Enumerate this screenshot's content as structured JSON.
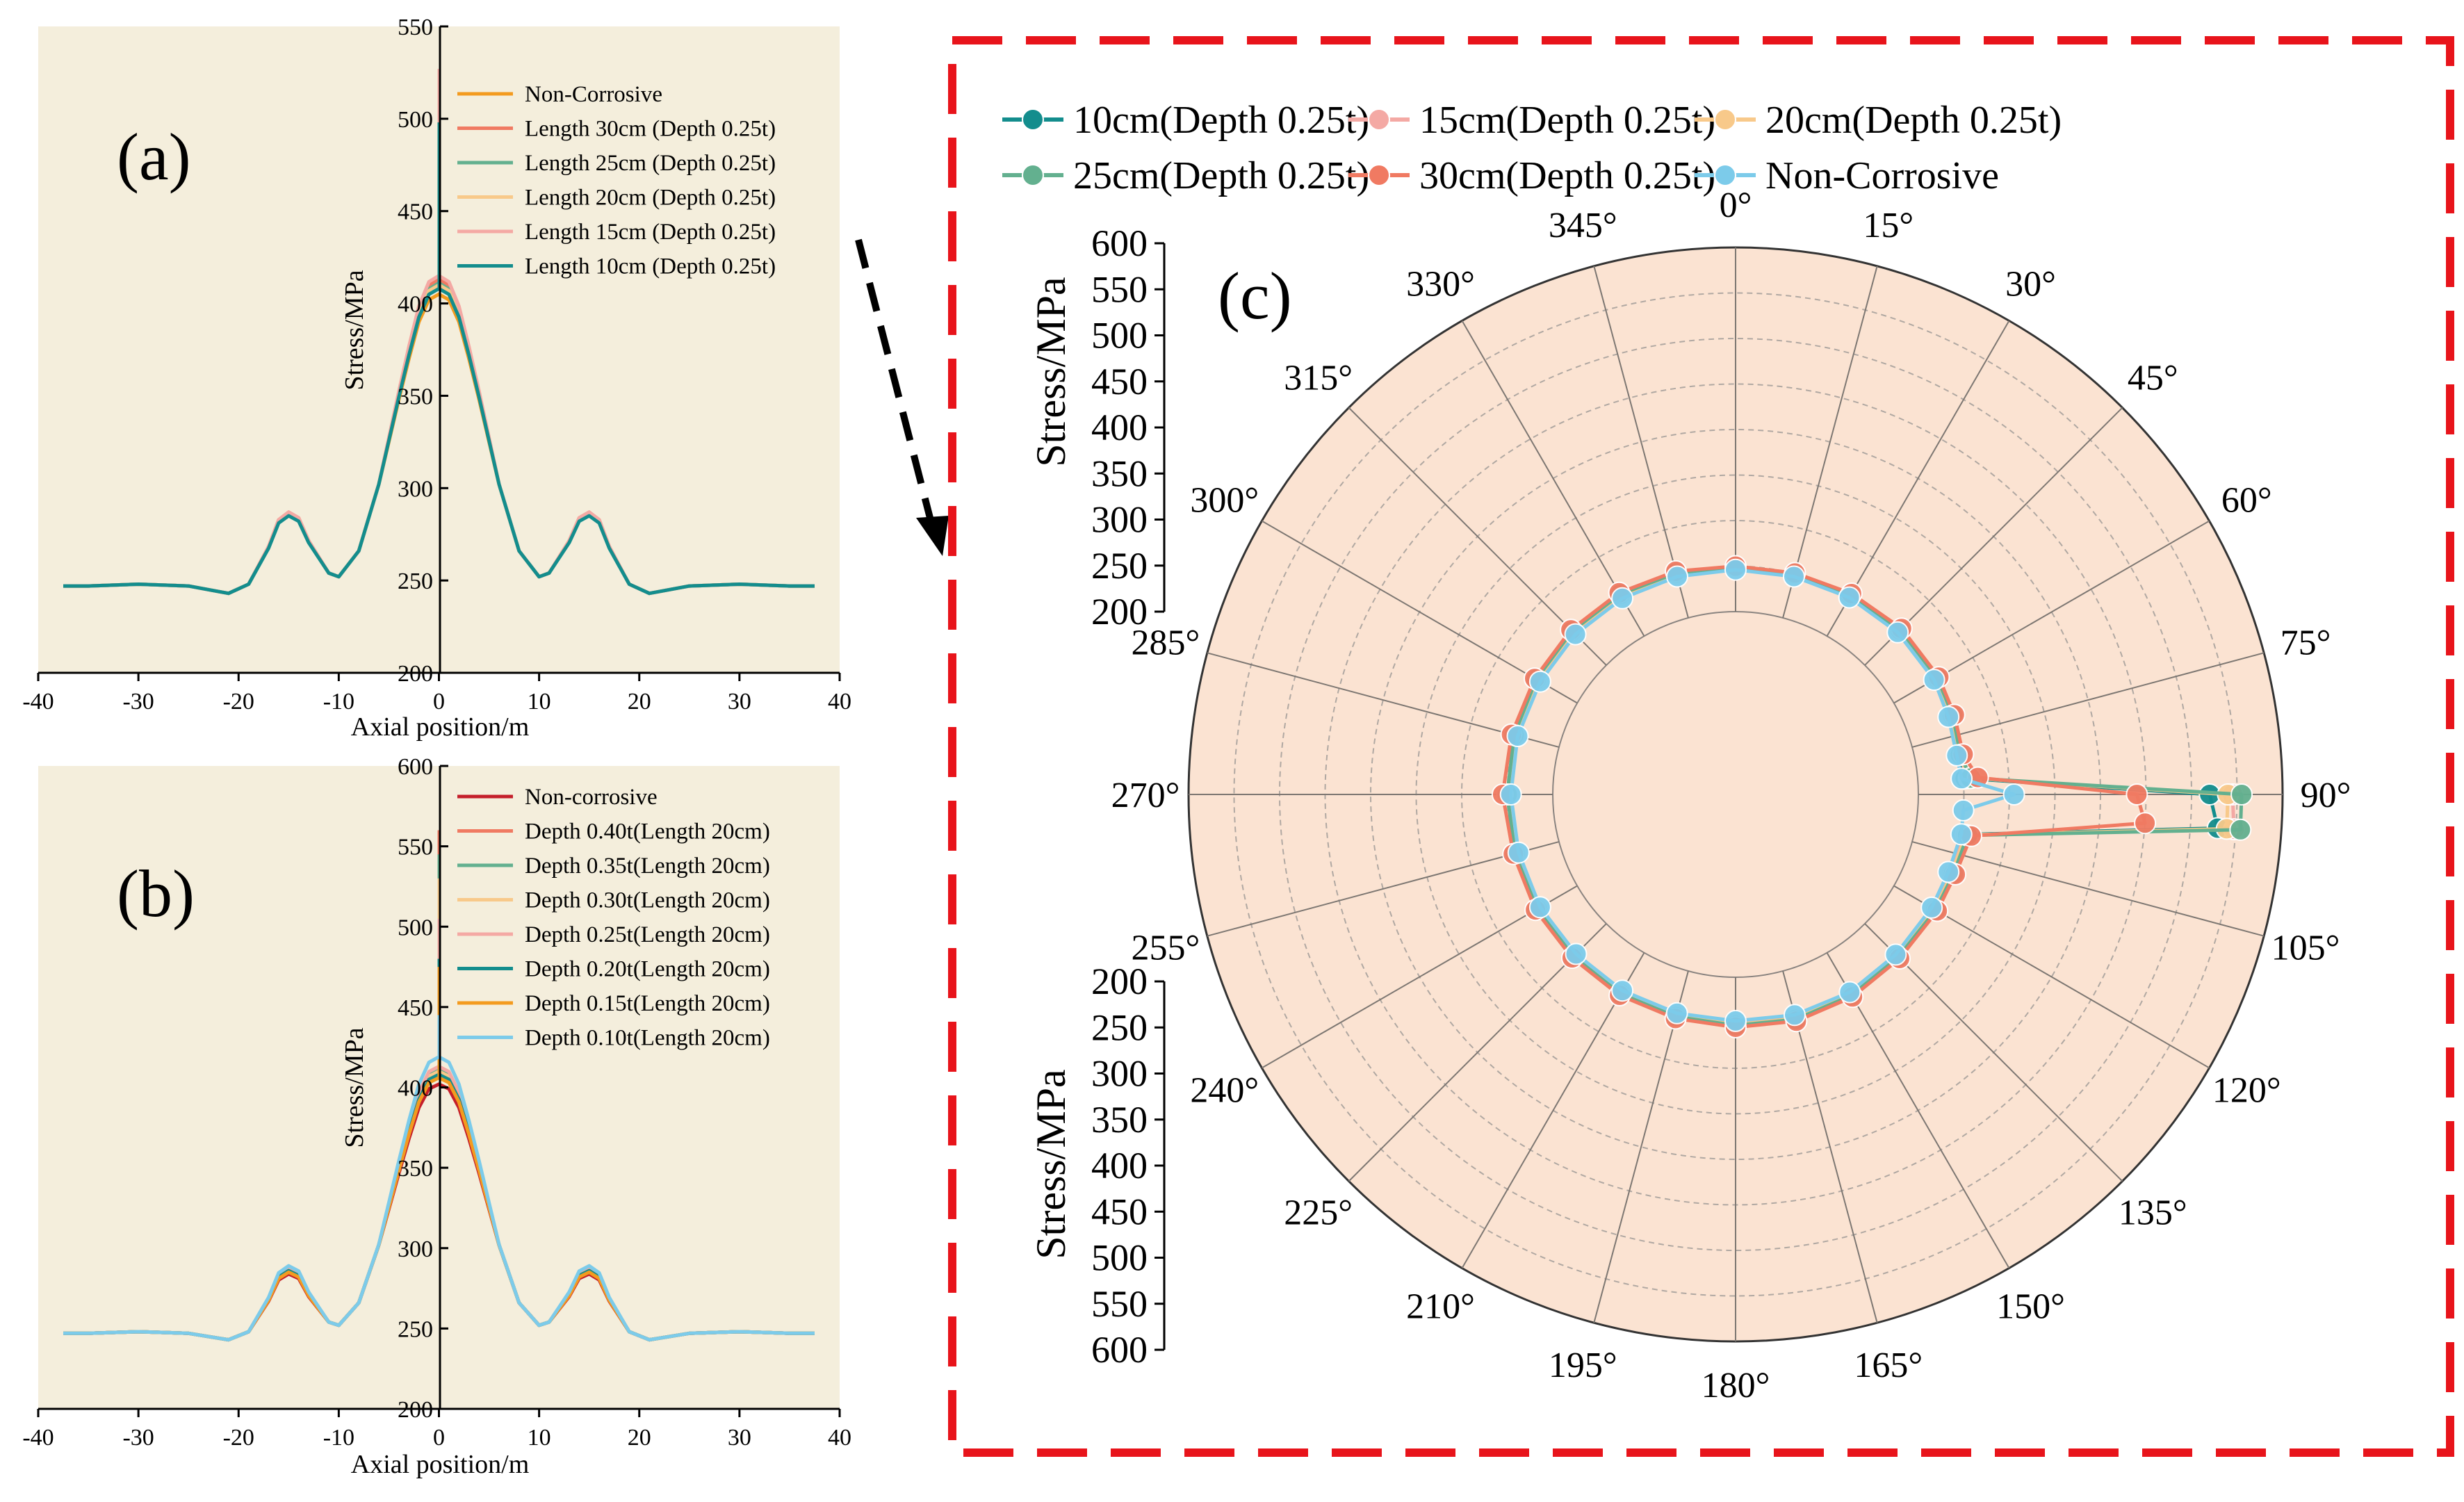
{
  "figure": {
    "arrow": "dashed arrow from panel (a) to panel (c)",
    "colors": {
      "panel_bg_linear": "#f4eedc",
      "panel_bg_polar": "#fbe3d2",
      "frame_red": "#e8141b"
    }
  },
  "chart_data": [
    {
      "panel": "(a)",
      "type": "line",
      "xlabel": "Axial position/m",
      "ylabel": "Stress/MPa",
      "xlim": [
        -40,
        40
      ],
      "ylim": [
        200,
        550
      ],
      "xticks": [
        "-40",
        "-30",
        "-20",
        "-10",
        "0",
        "10",
        "20",
        "30",
        "40"
      ],
      "yticks": [
        "200",
        "250",
        "300",
        "350",
        "400",
        "450",
        "500",
        "550"
      ],
      "profile_x": [
        -37.5,
        -35,
        -30,
        -25,
        -22,
        -21,
        -19,
        -17,
        -16,
        -15,
        -14,
        -13,
        -11,
        -10,
        -8,
        -6,
        -4,
        -3,
        -2,
        -1,
        0,
        1,
        2,
        3,
        4,
        6,
        8,
        10,
        11,
        13,
        14,
        15,
        16,
        17,
        19,
        21,
        22,
        25,
        30,
        35,
        37.5
      ],
      "profile_y": [
        247,
        247,
        248,
        247,
        244,
        243,
        248,
        268,
        282,
        286,
        283,
        271,
        254,
        252,
        266,
        302,
        348,
        370,
        390,
        402,
        405,
        402,
        390,
        370,
        348,
        302,
        266,
        252,
        254,
        271,
        283,
        286,
        282,
        268,
        248,
        243,
        244,
        247,
        248,
        247,
        247
      ],
      "series": [
        {
          "name": "Non-Corrosive",
          "color": "#f39b1f",
          "peak": 405,
          "spike": 405,
          "bump": 286
        },
        {
          "name": "Length 30cm (Depth 0.25t)",
          "color": "#f07a62",
          "peak": 413,
          "spike": 465,
          "bump": 287
        },
        {
          "name": "Length 25cm (Depth 0.25t)",
          "color": "#63b08f",
          "peak": 411,
          "spike": 470,
          "bump": 286
        },
        {
          "name": "Length 20cm (Depth 0.25t)",
          "color": "#f8c98a",
          "peak": 410,
          "spike": 480,
          "bump": 286
        },
        {
          "name": "Length 15cm (Depth 0.25t)",
          "color": "#f4a9a4",
          "peak": 415,
          "spike": 527,
          "bump": 287
        },
        {
          "name": "Length 10cm (Depth 0.25t)",
          "color": "#138d8d",
          "peak": 408,
          "spike": 498,
          "bump": 285
        }
      ]
    },
    {
      "panel": "(b)",
      "type": "line",
      "xlabel": "Axial position/m",
      "ylabel": "Stress/MPa",
      "xlim": [
        -40,
        40
      ],
      "ylim": [
        200,
        600
      ],
      "xticks": [
        "-40",
        "-30",
        "-20",
        "-10",
        "0",
        "10",
        "20",
        "30",
        "40"
      ],
      "yticks": [
        "200",
        "250",
        "300",
        "350",
        "400",
        "450",
        "500",
        "550",
        "600"
      ],
      "series": [
        {
          "name": "Non-corrosive",
          "color": "#c41e2a",
          "peak": 402,
          "spike": 402,
          "bump": 284
        },
        {
          "name": "Depth 0.40t(Length 20cm)",
          "color": "#f07a62",
          "peak": 412,
          "spike": 560,
          "bump": 288
        },
        {
          "name": "Depth 0.35t(Length 20cm)",
          "color": "#63b08f",
          "peak": 411,
          "spike": 545,
          "bump": 287
        },
        {
          "name": "Depth 0.30t(Length 20cm)",
          "color": "#f8c98a",
          "peak": 410,
          "spike": 530,
          "bump": 287
        },
        {
          "name": "Depth 0.25t(Length 20cm)",
          "color": "#f4a9a4",
          "peak": 413,
          "spike": 505,
          "bump": 287
        },
        {
          "name": "Depth 0.20t(Length 20cm)",
          "color": "#138d8d",
          "peak": 408,
          "spike": 480,
          "bump": 286
        },
        {
          "name": "Depth 0.15t(Length 20cm)",
          "color": "#f39b1f",
          "peak": 406,
          "spike": 475,
          "bump": 285
        },
        {
          "name": "Depth 0.10t(Length 20cm)",
          "color": "#7ccbea",
          "peak": 419,
          "spike": 445,
          "bump": 289
        }
      ]
    },
    {
      "panel": "(c)",
      "type": "polar",
      "radial_label": "Stress/MPa",
      "rlim": [
        200,
        600
      ],
      "rticks": [
        "200",
        "250",
        "300",
        "350",
        "400",
        "450",
        "500",
        "550",
        "600"
      ],
      "angle_ticks": [
        "0°",
        "15°",
        "30°",
        "45°",
        "60°",
        "75°",
        "90°",
        "105°",
        "120°",
        "135°",
        "150°",
        "165°",
        "180°",
        "195°",
        "210°",
        "225°",
        "240°",
        "255°",
        "270°",
        "285°",
        "300°",
        "315°",
        "330°",
        "345°"
      ],
      "theta_deg": [
        0,
        15,
        30,
        45,
        60,
        70,
        80,
        86,
        90,
        94,
        100,
        110,
        120,
        135,
        150,
        165,
        180,
        195,
        210,
        225,
        240,
        255,
        270,
        285,
        300,
        315,
        330,
        345
      ],
      "series": [
        {
          "name": "10cm(Depth 0.25t)",
          "color": "#138d8d",
          "r": [
            247,
            248,
            250,
            252,
            252,
            250,
            247,
            252,
            520,
            530,
            253,
            250,
            250,
            250,
            252,
            252,
            250,
            250,
            250,
            249,
            249,
            248,
            248,
            249,
            249,
            250,
            250,
            249
          ]
        },
        {
          "name": "15cm(Depth 0.25t)",
          "color": "#f4a9a4",
          "r": [
            248,
            249,
            251,
            253,
            253,
            251,
            248,
            256,
            545,
            548,
            255,
            251,
            251,
            251,
            253,
            253,
            251,
            251,
            251,
            250,
            250,
            249,
            249,
            250,
            250,
            251,
            251,
            250
          ]
        },
        {
          "name": "20cm(Depth 0.25t)",
          "color": "#f8c98a",
          "r": [
            248,
            249,
            251,
            254,
            254,
            252,
            249,
            257,
            540,
            540,
            256,
            252,
            252,
            251,
            253,
            254,
            252,
            251,
            251,
            250,
            250,
            249,
            250,
            250,
            251,
            252,
            252,
            250
          ]
        },
        {
          "name": "25cm(Depth 0.25t)",
          "color": "#63b08f",
          "r": [
            249,
            250,
            252,
            255,
            255,
            253,
            250,
            258,
            555,
            555,
            258,
            254,
            253,
            252,
            254,
            255,
            253,
            252,
            252,
            251,
            251,
            250,
            250,
            251,
            252,
            253,
            253,
            251
          ]
        },
        {
          "name": "30cm(Depth 0.25t)",
          "color": "#f07a62",
          "r": [
            250,
            251,
            254,
            257,
            257,
            255,
            253,
            266,
            440,
            450,
            262,
            256,
            255,
            254,
            256,
            257,
            255,
            254,
            254,
            253,
            253,
            252,
            255,
            254,
            254,
            255,
            255,
            253
          ]
        },
        {
          "name": "Non-Corrosive",
          "color": "#7ccbea",
          "r": [
            246,
            247,
            249,
            251,
            251,
            248,
            246,
            248,
            305,
            250,
            251,
            248,
            248,
            248,
            250,
            250,
            248,
            248,
            248,
            247,
            247,
            246,
            246,
            247,
            247,
            248,
            248,
            247
          ]
        }
      ]
    }
  ]
}
